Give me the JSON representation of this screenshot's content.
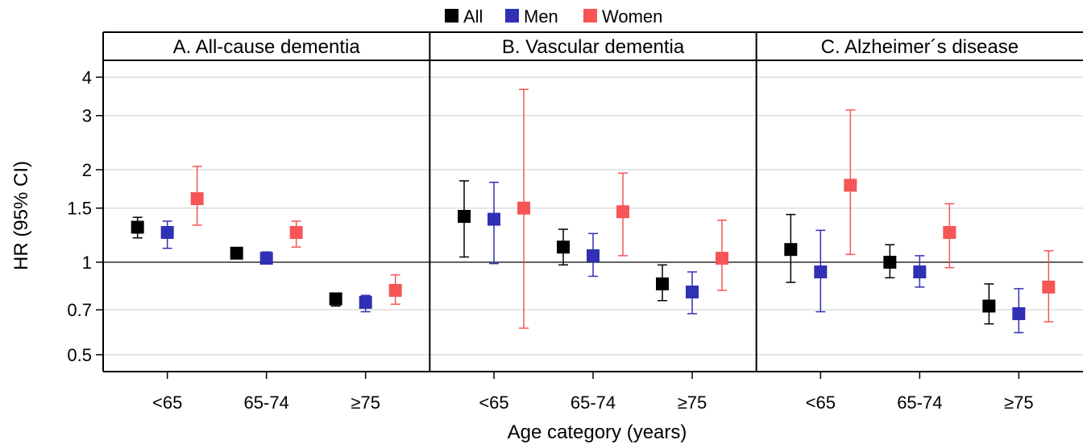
{
  "chart_data": {
    "type": "scatter",
    "subtype": "point-with-error-bars, faceted",
    "xlabel": "Age category (years)",
    "ylabel": "HR (95% CI)",
    "yscale": "log",
    "ylim": [
      0.45,
      4.4
    ],
    "yticks": [
      0.5,
      0.7,
      1,
      1.5,
      2,
      3,
      4
    ],
    "ytick_labels": [
      "0.5",
      "0.7",
      "1",
      "1.5",
      "2",
      "3",
      "4"
    ],
    "reference_line": 1,
    "grid": true,
    "legend_position": "top-center",
    "categories": [
      "<65",
      "65-74",
      "≥75"
    ],
    "series": [
      {
        "name": "All",
        "color": "#000000"
      },
      {
        "name": "Men",
        "color": "#3030b4"
      },
      {
        "name": "Women",
        "color": "#f65555"
      }
    ],
    "panels": [
      {
        "title": "A. All-cause dementia",
        "points": {
          "All": [
            {
              "hr": 1.3,
              "lo": 1.2,
              "hi": 1.4
            },
            {
              "hr": 1.07,
              "lo": 1.04,
              "hi": 1.1
            },
            {
              "hr": 0.76,
              "lo": 0.72,
              "hi": 0.79
            }
          ],
          "Men": [
            {
              "hr": 1.25,
              "lo": 1.11,
              "hi": 1.36
            },
            {
              "hr": 1.03,
              "lo": 0.99,
              "hi": 1.08
            },
            {
              "hr": 0.74,
              "lo": 0.69,
              "hi": 0.78
            }
          ],
          "Women": [
            {
              "hr": 1.61,
              "lo": 1.32,
              "hi": 2.05
            },
            {
              "hr": 1.25,
              "lo": 1.12,
              "hi": 1.36
            },
            {
              "hr": 0.81,
              "lo": 0.73,
              "hi": 0.91
            }
          ]
        }
      },
      {
        "title": "B. Vascular dementia",
        "points": {
          "All": [
            {
              "hr": 1.41,
              "lo": 1.04,
              "hi": 1.84
            },
            {
              "hr": 1.12,
              "lo": 0.98,
              "hi": 1.28
            },
            {
              "hr": 0.85,
              "lo": 0.75,
              "hi": 0.98
            }
          ],
          "Men": [
            {
              "hr": 1.38,
              "lo": 0.99,
              "hi": 1.82
            },
            {
              "hr": 1.05,
              "lo": 0.9,
              "hi": 1.24
            },
            {
              "hr": 0.8,
              "lo": 0.68,
              "hi": 0.93
            }
          ],
          "Women": [
            {
              "hr": 1.5,
              "lo": 0.61,
              "hi": 3.65
            },
            {
              "hr": 1.46,
              "lo": 1.05,
              "hi": 1.95
            },
            {
              "hr": 1.03,
              "lo": 0.81,
              "hi": 1.37
            }
          ]
        }
      },
      {
        "title": "C. Alzheimer´s disease",
        "points": {
          "All": [
            {
              "hr": 1.1,
              "lo": 0.86,
              "hi": 1.43
            },
            {
              "hr": 1.0,
              "lo": 0.89,
              "hi": 1.14
            },
            {
              "hr": 0.72,
              "lo": 0.63,
              "hi": 0.85
            }
          ],
          "Men": [
            {
              "hr": 0.93,
              "lo": 0.69,
              "hi": 1.27
            },
            {
              "hr": 0.93,
              "lo": 0.83,
              "hi": 1.05
            },
            {
              "hr": 0.68,
              "lo": 0.59,
              "hi": 0.82
            }
          ],
          "Women": [
            {
              "hr": 1.78,
              "lo": 1.06,
              "hi": 3.13
            },
            {
              "hr": 1.25,
              "lo": 0.96,
              "hi": 1.55
            },
            {
              "hr": 0.83,
              "lo": 0.64,
              "hi": 1.09
            }
          ]
        }
      }
    ]
  }
}
